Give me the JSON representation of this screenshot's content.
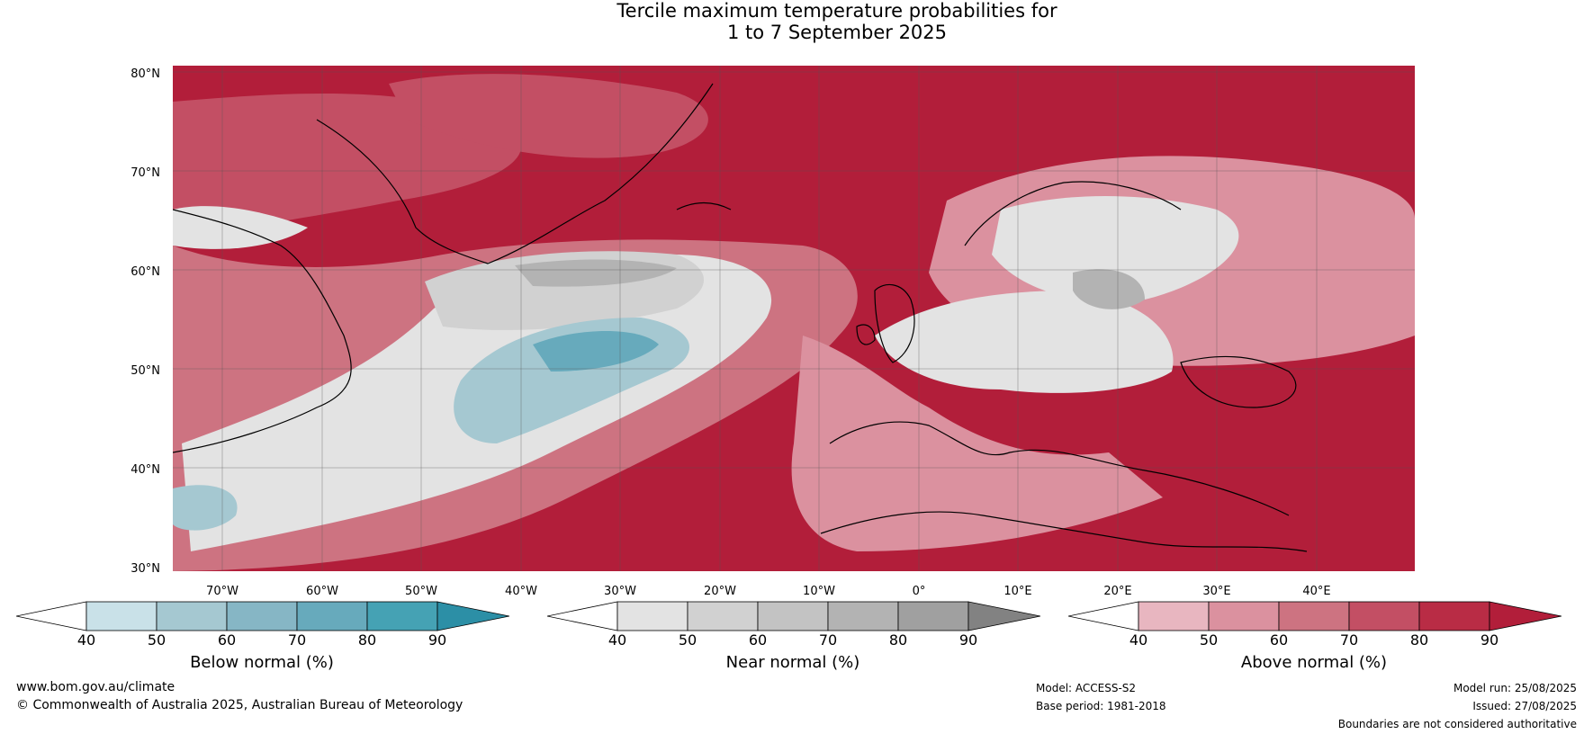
{
  "title": {
    "line1": "Tercile maximum temperature probabilities for",
    "line2": "1 to 7 September 2025"
  },
  "map": {
    "lat_labels": [
      "80°N",
      "70°N",
      "60°N",
      "50°N",
      "40°N",
      "30°N"
    ],
    "lon_labels": [
      "70°W",
      "60°W",
      "50°W",
      "40°W",
      "30°W",
      "20°W",
      "10°W",
      "0°",
      "10°E",
      "20°E",
      "30°E",
      "40°E"
    ]
  },
  "colorbars": [
    {
      "title": "Below normal (%)",
      "ticks": [
        "40",
        "50",
        "60",
        "70",
        "80",
        "90"
      ],
      "colors": [
        "#ffffff",
        "#c9e1e8",
        "#a5c8d1",
        "#86b6c5",
        "#67aabc",
        "#45a2b4",
        "#2c8fa6"
      ]
    },
    {
      "title": "Near normal (%)",
      "ticks": [
        "40",
        "50",
        "60",
        "70",
        "80",
        "90"
      ],
      "colors": [
        "#ffffff",
        "#e3e3e3",
        "#d1d1d1",
        "#c3c3c3",
        "#b3b3b3",
        "#a0a0a0",
        "#828282"
      ]
    },
    {
      "title": "Above normal (%)",
      "ticks": [
        "40",
        "50",
        "60",
        "70",
        "80",
        "90"
      ],
      "colors": [
        "#ffffff",
        "#e8b6c0",
        "#db919f",
        "#cd7381",
        "#c34f64",
        "#b92c45",
        "#b21e3a"
      ]
    }
  ],
  "footer": {
    "website": "www.bom.gov.au/climate",
    "copyright": "© Commonwealth of Australia 2025, Australian Bureau of Meteorology",
    "model": "Model: ACCESS-S2",
    "base_period": "Base period: 1981-2018",
    "model_run": "Model run: 25/08/2025",
    "issued": "Issued: 27/08/2025",
    "disclaimer": "Boundaries are not considered authoritative"
  }
}
